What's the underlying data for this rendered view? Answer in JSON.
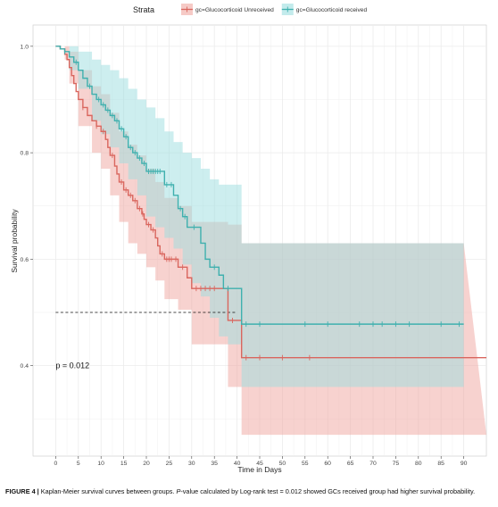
{
  "caption": {
    "label": "FIGURE 4 |",
    "text_before_p": "Kaplan-Meier survival curves between groups.",
    "p_symbol": "P",
    "text_after_p": "-value calculated by Log-rank test = 0.012 showed GCs received group had higher survival probability."
  },
  "chart_data": {
    "type": "line",
    "title": "",
    "xlabel": "Time in Days",
    "ylabel": "Survival probability",
    "xlim": [
      -5,
      95
    ],
    "ylim": [
      0.23,
      1.04
    ],
    "x_ticks": [
      0,
      5,
      10,
      15,
      20,
      25,
      30,
      35,
      40,
      45,
      50,
      55,
      60,
      65,
      70,
      75,
      80,
      85,
      90
    ],
    "y_ticks": [
      0.4,
      0.6,
      0.8,
      1.0
    ],
    "y_tick_labels": [
      "0.4",
      "0.6",
      "0.8",
      "1.0"
    ],
    "grid": true,
    "legend": {
      "title": "Strata",
      "placement": "top"
    },
    "median_line": {
      "y": 0.5,
      "x_end": 40
    },
    "annotation": {
      "text": "p = 0.012",
      "x": 0,
      "y": 0.4
    },
    "series": [
      {
        "name": "gc=Glucocorticoid Unreceived",
        "color": "#d9665e",
        "fill": "#f0a6a0",
        "steps": [
          [
            0,
            1.0
          ],
          [
            1,
            0.995
          ],
          [
            2,
            0.985
          ],
          [
            2.5,
            0.975
          ],
          [
            3,
            0.96
          ],
          [
            3.5,
            0.945
          ],
          [
            4,
            0.93
          ],
          [
            4.5,
            0.915
          ],
          [
            5,
            0.9
          ],
          [
            6,
            0.885
          ],
          [
            7,
            0.87
          ],
          [
            8,
            0.86
          ],
          [
            9,
            0.85
          ],
          [
            10,
            0.84
          ],
          [
            11,
            0.825
          ],
          [
            11.5,
            0.81
          ],
          [
            12,
            0.795
          ],
          [
            13,
            0.775
          ],
          [
            13.5,
            0.76
          ],
          [
            14,
            0.745
          ],
          [
            15,
            0.73
          ],
          [
            16,
            0.72
          ],
          [
            17,
            0.71
          ],
          [
            18,
            0.695
          ],
          [
            19,
            0.685
          ],
          [
            19.5,
            0.675
          ],
          [
            20,
            0.665
          ],
          [
            21,
            0.655
          ],
          [
            22,
            0.64
          ],
          [
            22.5,
            0.625
          ],
          [
            23,
            0.61
          ],
          [
            24,
            0.6
          ],
          [
            26,
            0.6
          ],
          [
            27,
            0.585
          ],
          [
            29,
            0.565
          ],
          [
            30,
            0.545
          ],
          [
            36,
            0.545
          ],
          [
            38,
            0.485
          ],
          [
            40,
            0.485
          ],
          [
            41,
            0.415
          ],
          [
            95,
            0.415
          ]
        ],
        "ci_upper": [
          [
            0,
            1.0
          ],
          [
            2,
            1.0
          ],
          [
            3,
            0.99
          ],
          [
            5,
            0.955
          ],
          [
            8,
            0.925
          ],
          [
            10,
            0.91
          ],
          [
            12,
            0.875
          ],
          [
            14,
            0.84
          ],
          [
            16,
            0.815
          ],
          [
            18,
            0.795
          ],
          [
            20,
            0.77
          ],
          [
            22,
            0.745
          ],
          [
            24,
            0.715
          ],
          [
            27,
            0.7
          ],
          [
            30,
            0.67
          ],
          [
            38,
            0.665
          ],
          [
            40,
            0.665
          ],
          [
            41,
            0.63
          ],
          [
            90,
            0.63
          ]
        ],
        "ci_lower": [
          [
            0,
            1.0
          ],
          [
            2,
            0.975
          ],
          [
            3,
            0.93
          ],
          [
            5,
            0.85
          ],
          [
            8,
            0.8
          ],
          [
            10,
            0.77
          ],
          [
            12,
            0.72
          ],
          [
            14,
            0.67
          ],
          [
            16,
            0.63
          ],
          [
            18,
            0.61
          ],
          [
            20,
            0.585
          ],
          [
            22,
            0.56
          ],
          [
            24,
            0.525
          ],
          [
            27,
            0.505
          ],
          [
            30,
            0.44
          ],
          [
            36,
            0.44
          ],
          [
            38,
            0.36
          ],
          [
            40,
            0.36
          ],
          [
            41,
            0.27
          ],
          [
            95,
            0.27
          ]
        ],
        "censor_x": [
          6,
          9,
          10.5,
          12.5,
          14.5,
          15.5,
          16.5,
          17.5,
          18.5,
          19.2,
          20.5,
          21.5,
          23.5,
          24.5,
          25,
          25.5,
          26.5,
          28,
          31,
          32,
          33,
          34,
          35,
          39,
          42,
          45,
          50,
          56
        ]
      },
      {
        "name": "gc=Glucocorticoid received",
        "color": "#3fb0ae",
        "fill": "#9bdde0",
        "steps": [
          [
            0,
            1.0
          ],
          [
            1,
            0.995
          ],
          [
            2,
            0.99
          ],
          [
            3,
            0.98
          ],
          [
            4,
            0.97
          ],
          [
            5,
            0.955
          ],
          [
            6,
            0.94
          ],
          [
            7,
            0.925
          ],
          [
            8,
            0.91
          ],
          [
            9,
            0.9
          ],
          [
            10,
            0.89
          ],
          [
            11,
            0.88
          ],
          [
            12,
            0.87
          ],
          [
            13,
            0.86
          ],
          [
            14,
            0.845
          ],
          [
            15,
            0.83
          ],
          [
            16,
            0.81
          ],
          [
            17,
            0.8
          ],
          [
            18,
            0.79
          ],
          [
            19,
            0.78
          ],
          [
            20,
            0.765
          ],
          [
            23,
            0.765
          ],
          [
            24,
            0.74
          ],
          [
            26,
            0.72
          ],
          [
            27,
            0.695
          ],
          [
            28,
            0.68
          ],
          [
            29,
            0.66
          ],
          [
            31,
            0.66
          ],
          [
            32,
            0.63
          ],
          [
            33,
            0.6
          ],
          [
            34,
            0.585
          ],
          [
            36,
            0.57
          ],
          [
            37,
            0.545
          ],
          [
            40,
            0.545
          ],
          [
            41,
            0.478
          ],
          [
            90,
            0.478
          ]
        ],
        "ci_upper": [
          [
            0,
            1.0
          ],
          [
            3,
            1.0
          ],
          [
            5,
            0.99
          ],
          [
            8,
            0.975
          ],
          [
            10,
            0.965
          ],
          [
            12,
            0.955
          ],
          [
            14,
            0.94
          ],
          [
            16,
            0.92
          ],
          [
            18,
            0.9
          ],
          [
            20,
            0.885
          ],
          [
            22,
            0.865
          ],
          [
            24,
            0.84
          ],
          [
            26,
            0.82
          ],
          [
            28,
            0.8
          ],
          [
            30,
            0.79
          ],
          [
            32,
            0.77
          ],
          [
            34,
            0.75
          ],
          [
            36,
            0.74
          ],
          [
            38,
            0.74
          ],
          [
            40,
            0.74
          ],
          [
            41,
            0.63
          ],
          [
            90,
            0.63
          ]
        ],
        "ci_lower": [
          [
            0,
            1.0
          ],
          [
            3,
            0.955
          ],
          [
            5,
            0.92
          ],
          [
            8,
            0.86
          ],
          [
            10,
            0.835
          ],
          [
            12,
            0.81
          ],
          [
            14,
            0.78
          ],
          [
            16,
            0.75
          ],
          [
            18,
            0.72
          ],
          [
            20,
            0.68
          ],
          [
            22,
            0.66
          ],
          [
            24,
            0.64
          ],
          [
            26,
            0.62
          ],
          [
            28,
            0.59
          ],
          [
            30,
            0.555
          ],
          [
            32,
            0.53
          ],
          [
            34,
            0.49
          ],
          [
            36,
            0.455
          ],
          [
            38,
            0.44
          ],
          [
            40,
            0.44
          ],
          [
            41,
            0.36
          ],
          [
            90,
            0.36
          ]
        ],
        "censor_x": [
          2,
          4.5,
          7.5,
          9.5,
          10.5,
          11.5,
          12.5,
          13.5,
          14.5,
          15.5,
          16.5,
          17.5,
          18.5,
          19.5,
          20.5,
          21,
          21.5,
          22,
          22.5,
          23,
          24.5,
          25.5,
          27.5,
          28.5,
          30.5,
          35,
          38,
          42,
          45,
          55,
          60,
          67,
          70,
          72,
          75,
          78,
          85,
          89
        ]
      }
    ]
  }
}
